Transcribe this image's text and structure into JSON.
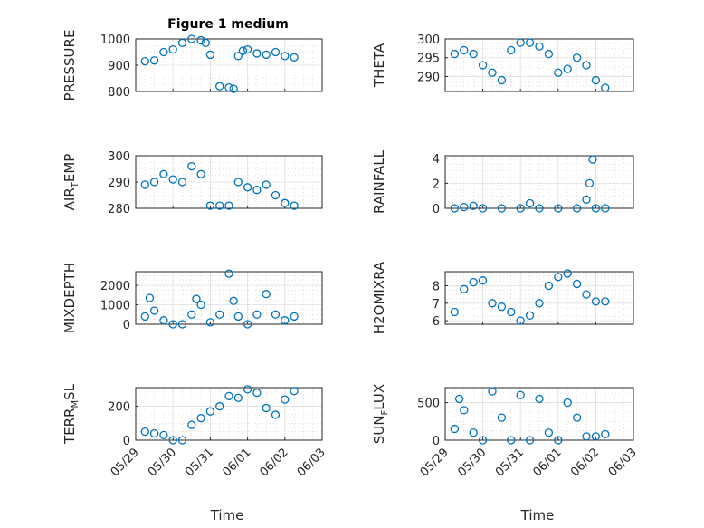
{
  "figure": {
    "title": "Figure 1 medium",
    "xlabel": "Time"
  },
  "chart_data": [
    {
      "type": "scatter",
      "panel": "PRESSURE",
      "ylabel": {
        "main": "PRESSURE"
      },
      "ylim": [
        800,
        1000
      ],
      "yticks": [
        800,
        900,
        1000
      ],
      "xlim": [
        "05/29",
        "06/03"
      ],
      "xticks": [
        "05/29",
        "05/30",
        "05/31",
        "06/01",
        "06/02",
        "06/03"
      ],
      "grid": true,
      "minor_grid": true,
      "show_xticklabels": false,
      "x": [
        "05/29 06:00",
        "05/29 12:00",
        "05/29 18:00",
        "05/30 00:00",
        "05/30 06:00",
        "05/30 12:00",
        "05/30 18:00",
        "05/30 21:00",
        "05/31 00:00",
        "05/31 06:00",
        "05/31 12:00",
        "05/31 15:00",
        "05/31 18:00",
        "05/31 21:00",
        "06/01 00:00",
        "06/01 06:00",
        "06/01 12:00",
        "06/01 18:00",
        "06/02 00:00",
        "06/02 06:00"
      ],
      "values": [
        915,
        918,
        950,
        960,
        985,
        1000,
        995,
        985,
        940,
        820,
        815,
        810,
        935,
        955,
        960,
        945,
        940,
        950,
        935,
        930
      ]
    },
    {
      "type": "scatter",
      "panel": "THETA",
      "ylabel": {
        "main": "THETA"
      },
      "ylim": [
        286,
        300
      ],
      "yticks": [
        290,
        295,
        300
      ],
      "xlim": [
        "05/29",
        "06/03"
      ],
      "xticks": [
        "05/29",
        "05/30",
        "05/31",
        "06/01",
        "06/02",
        "06/03"
      ],
      "grid": true,
      "minor_grid": true,
      "show_xticklabels": false,
      "x": [
        "05/29 06:00",
        "05/29 12:00",
        "05/29 18:00",
        "05/30 00:00",
        "05/30 06:00",
        "05/30 12:00",
        "05/30 18:00",
        "05/31 00:00",
        "05/31 06:00",
        "05/31 12:00",
        "05/31 18:00",
        "06/01 00:00",
        "06/01 06:00",
        "06/01 12:00",
        "06/01 18:00",
        "06/02 00:00",
        "06/02 06:00"
      ],
      "values": [
        296,
        297,
        296,
        293,
        291,
        289,
        297,
        299,
        299,
        298,
        296,
        291,
        292,
        295,
        293,
        289,
        287
      ]
    },
    {
      "type": "scatter",
      "panel": "AIR_TEMP",
      "ylabel": {
        "main": "AIR",
        "sub": "T",
        "rest": "EMP"
      },
      "ylim": [
        280,
        300
      ],
      "yticks": [
        280,
        290,
        300
      ],
      "xlim": [
        "05/29",
        "06/03"
      ],
      "xticks": [
        "05/29",
        "05/30",
        "05/31",
        "06/01",
        "06/02",
        "06/03"
      ],
      "grid": true,
      "minor_grid": true,
      "show_xticklabels": false,
      "x": [
        "05/29 06:00",
        "05/29 12:00",
        "05/29 18:00",
        "05/30 00:00",
        "05/30 06:00",
        "05/30 12:00",
        "05/30 18:00",
        "05/31 00:00",
        "05/31 06:00",
        "05/31 12:00",
        "05/31 18:00",
        "06/01 00:00",
        "06/01 06:00",
        "06/01 12:00",
        "06/01 18:00",
        "06/02 00:00",
        "06/02 06:00"
      ],
      "values": [
        289,
        290,
        293,
        291,
        290,
        296,
        293,
        281,
        281,
        281,
        290,
        288,
        287,
        289,
        285,
        282,
        281
      ]
    },
    {
      "type": "scatter",
      "panel": "RAINFALL",
      "ylabel": {
        "main": "RAINFALL"
      },
      "ylim": [
        0,
        4.2
      ],
      "yticks": [
        0,
        2,
        4
      ],
      "xlim": [
        "05/29",
        "06/03"
      ],
      "xticks": [
        "05/29",
        "05/30",
        "05/31",
        "06/01",
        "06/02",
        "06/03"
      ],
      "grid": true,
      "minor_grid": true,
      "show_xticklabels": false,
      "x": [
        "05/29 06:00",
        "05/29 12:00",
        "05/29 18:00",
        "05/30 00:00",
        "05/30 12:00",
        "05/31 00:00",
        "05/31 06:00",
        "05/31 12:00",
        "06/01 00:00",
        "06/01 12:00",
        "06/01 18:00",
        "06/01 20:00",
        "06/01 22:00",
        "06/02 00:00",
        "06/02 06:00"
      ],
      "values": [
        0,
        0.1,
        0.2,
        0,
        0,
        0,
        0.4,
        0,
        0,
        0,
        0.7,
        2.0,
        3.9,
        0,
        0
      ]
    },
    {
      "type": "scatter",
      "panel": "MIXDEPTH",
      "ylabel": {
        "main": "MIXDEPTH"
      },
      "ylim": [
        0,
        2700
      ],
      "yticks": [
        0,
        1000,
        2000
      ],
      "xlim": [
        "05/29",
        "06/03"
      ],
      "xticks": [
        "05/29",
        "05/30",
        "05/31",
        "06/01",
        "06/02",
        "06/03"
      ],
      "grid": true,
      "minor_grid": true,
      "show_xticklabels": false,
      "x": [
        "05/29 06:00",
        "05/29 09:00",
        "05/29 12:00",
        "05/29 18:00",
        "05/30 00:00",
        "05/30 06:00",
        "05/30 12:00",
        "05/30 15:00",
        "05/30 18:00",
        "05/31 00:00",
        "05/31 06:00",
        "05/31 12:00",
        "05/31 15:00",
        "05/31 18:00",
        "06/01 00:00",
        "06/01 06:00",
        "06/01 12:00",
        "06/01 18:00",
        "06/02 00:00",
        "06/02 06:00"
      ],
      "values": [
        400,
        1350,
        700,
        200,
        0,
        0,
        500,
        1300,
        1000,
        100,
        500,
        2600,
        1200,
        400,
        0,
        500,
        1550,
        500,
        200,
        400
      ]
    },
    {
      "type": "scatter",
      "panel": "H2OMIXRA",
      "ylabel": {
        "main": "H2OMIXRA"
      },
      "ylim": [
        5.8,
        8.8
      ],
      "yticks": [
        6,
        7,
        8
      ],
      "xlim": [
        "05/29",
        "06/03"
      ],
      "xticks": [
        "05/29",
        "05/30",
        "05/31",
        "06/01",
        "06/02",
        "06/03"
      ],
      "grid": true,
      "minor_grid": true,
      "show_xticklabels": false,
      "x": [
        "05/29 06:00",
        "05/29 12:00",
        "05/29 18:00",
        "05/30 00:00",
        "05/30 06:00",
        "05/30 12:00",
        "05/30 18:00",
        "05/31 00:00",
        "05/31 06:00",
        "05/31 12:00",
        "05/31 18:00",
        "06/01 00:00",
        "06/01 06:00",
        "06/01 12:00",
        "06/01 18:00",
        "06/02 00:00",
        "06/02 06:00"
      ],
      "values": [
        6.5,
        7.8,
        8.2,
        8.3,
        7.0,
        6.8,
        6.5,
        6.0,
        6.3,
        7.0,
        8.0,
        8.5,
        8.7,
        8.1,
        7.5,
        7.1,
        7.1
      ]
    },
    {
      "type": "scatter",
      "panel": "TERR_MSL",
      "ylabel": {
        "main": "TERR",
        "sub": "M",
        "rest": "SL"
      },
      "ylim": [
        0,
        310
      ],
      "yticks": [
        0,
        200
      ],
      "xlim": [
        "05/29",
        "06/03"
      ],
      "xticks": [
        "05/29",
        "05/30",
        "05/31",
        "06/01",
        "06/02",
        "06/03"
      ],
      "grid": true,
      "minor_grid": true,
      "show_xticklabels": true,
      "x": [
        "05/29 06:00",
        "05/29 12:00",
        "05/29 18:00",
        "05/30 00:00",
        "05/30 06:00",
        "05/30 12:00",
        "05/30 18:00",
        "05/31 00:00",
        "05/31 06:00",
        "05/31 12:00",
        "05/31 18:00",
        "06/01 00:00",
        "06/01 06:00",
        "06/01 12:00",
        "06/01 18:00",
        "06/02 00:00",
        "06/02 06:00"
      ],
      "values": [
        50,
        40,
        30,
        0,
        0,
        90,
        130,
        170,
        200,
        260,
        250,
        300,
        280,
        190,
        150,
        240,
        290
      ]
    },
    {
      "type": "scatter",
      "panel": "SUN_FLUX",
      "ylabel": {
        "main": "SUN",
        "sub": "F",
        "rest": "LUX"
      },
      "ylim": [
        0,
        700
      ],
      "yticks": [
        0,
        500
      ],
      "xlim": [
        "05/29",
        "06/03"
      ],
      "xticks": [
        "05/29",
        "05/30",
        "05/31",
        "06/01",
        "06/02",
        "06/03"
      ],
      "grid": true,
      "minor_grid": true,
      "show_xticklabels": true,
      "x": [
        "05/29 06:00",
        "05/29 09:00",
        "05/29 12:00",
        "05/29 18:00",
        "05/30 00:00",
        "05/30 06:00",
        "05/30 12:00",
        "05/30 18:00",
        "05/31 00:00",
        "05/31 06:00",
        "05/31 12:00",
        "05/31 18:00",
        "06/01 00:00",
        "06/01 06:00",
        "06/01 12:00",
        "06/01 18:00",
        "06/02 00:00",
        "06/02 06:00"
      ],
      "values": [
        150,
        550,
        400,
        100,
        0,
        650,
        300,
        0,
        600,
        0,
        550,
        100,
        0,
        500,
        300,
        50,
        50,
        80
      ]
    }
  ]
}
